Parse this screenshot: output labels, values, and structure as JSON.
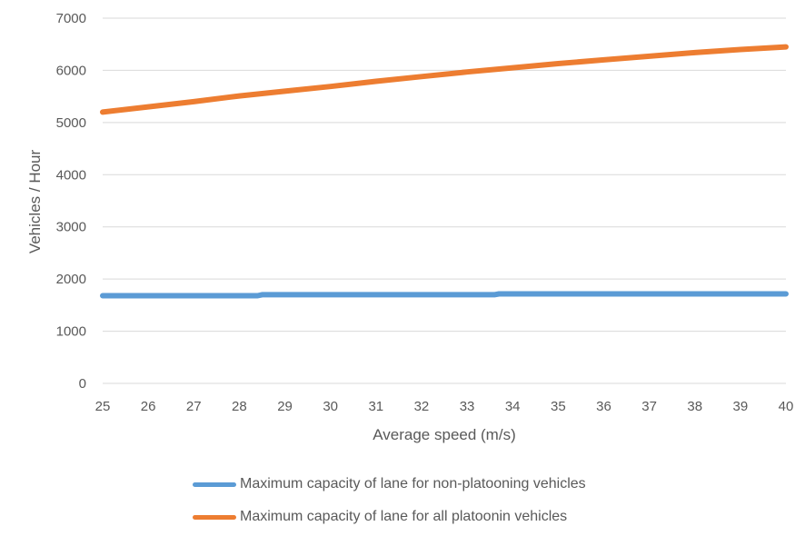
{
  "chart_data": {
    "type": "line",
    "xlabel": "Average speed (m/s)",
    "ylabel": "Vehicles / Hour",
    "xlim": [
      25,
      40
    ],
    "ylim": [
      0,
      7000
    ],
    "x_ticks": [
      "25",
      "26",
      "27",
      "28",
      "29",
      "30",
      "31",
      "32",
      "33",
      "34",
      "35",
      "36",
      "37",
      "38",
      "39",
      "40"
    ],
    "y_ticks": [
      "0",
      "1000",
      "2000",
      "3000",
      "4000",
      "5000",
      "6000",
      "7000"
    ],
    "grid": "horizontal",
    "legend_position": "bottom",
    "series": [
      {
        "name": "Maximum capacity of lane for non-platooning vehicles",
        "color": "#5B9BD5",
        "x": [
          25,
          28.4,
          28.5,
          33.6,
          33.7,
          40
        ],
        "y": [
          1680,
          1680,
          1700,
          1700,
          1715,
          1715
        ]
      },
      {
        "name": "Maximum capacity of lane for all platoonin vehicles",
        "color": "#ED7D31",
        "x": [
          25,
          26,
          27,
          28,
          29,
          30,
          31,
          32,
          33,
          34,
          35,
          36,
          37,
          38,
          39,
          40
        ],
        "y": [
          5200,
          5300,
          5400,
          5510,
          5600,
          5690,
          5790,
          5880,
          5970,
          6050,
          6130,
          6200,
          6270,
          6340,
          6400,
          6450
        ]
      }
    ]
  }
}
